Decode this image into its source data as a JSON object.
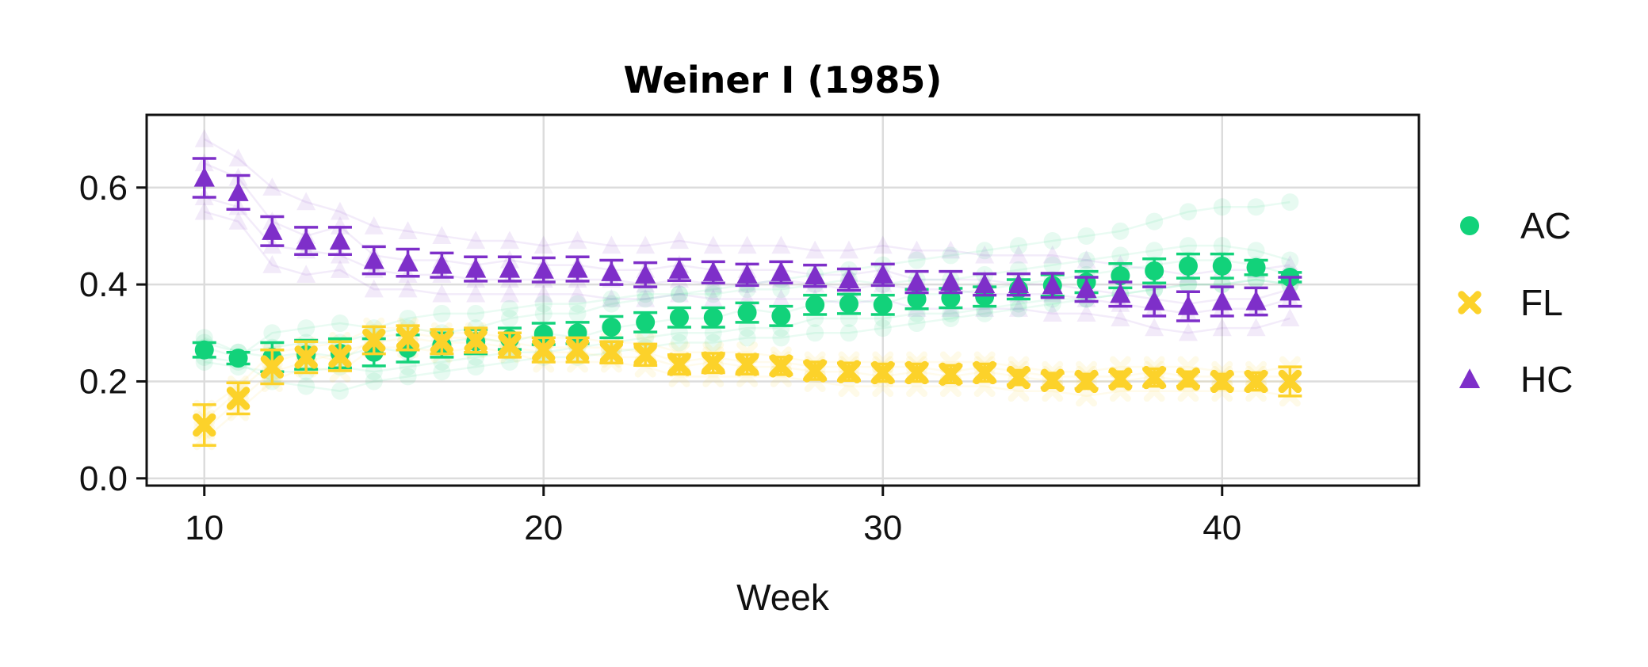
{
  "chart_data": {
    "type": "scatter",
    "title": "Weiner I (1985)",
    "xlabel": "Week",
    "ylabel": "",
    "xlim": [
      8.3,
      45.8
    ],
    "ylim": [
      -0.015,
      0.75
    ],
    "xticks": [
      10,
      20,
      30,
      40
    ],
    "yticks": [
      0.0,
      0.2,
      0.4,
      0.6
    ],
    "ytick_labels": [
      "0.0",
      "0.2",
      "0.4",
      "0.6"
    ],
    "grid": true,
    "legend_position": "right",
    "x": [
      10,
      11,
      12,
      13,
      14,
      15,
      16,
      17,
      18,
      19,
      20,
      21,
      22,
      23,
      24,
      25,
      26,
      27,
      28,
      29,
      30,
      31,
      32,
      33,
      34,
      35,
      36,
      37,
      38,
      39,
      40,
      41,
      42
    ],
    "series": [
      {
        "name": "AC",
        "color": "#12d27a",
        "marker": "circle",
        "values": [
          0.265,
          0.248,
          0.25,
          0.255,
          0.258,
          0.26,
          0.268,
          0.275,
          0.282,
          0.288,
          0.298,
          0.3,
          0.312,
          0.322,
          0.332,
          0.332,
          0.342,
          0.335,
          0.358,
          0.36,
          0.358,
          0.37,
          0.372,
          0.375,
          0.39,
          0.398,
          0.405,
          0.418,
          0.428,
          0.438,
          0.438,
          0.435,
          0.415
        ],
        "err": [
          0.015,
          0.012,
          0.03,
          0.03,
          0.03,
          0.028,
          0.028,
          0.025,
          0.025,
          0.022,
          0.022,
          0.022,
          0.022,
          0.02,
          0.02,
          0.02,
          0.02,
          0.02,
          0.02,
          0.02,
          0.02,
          0.02,
          0.02,
          0.02,
          0.02,
          0.022,
          0.022,
          0.025,
          0.025,
          0.025,
          0.025,
          0.015,
          0.01
        ]
      },
      {
        "name": "FL",
        "color": "#fcd22a",
        "marker": "x",
        "values": [
          0.11,
          0.165,
          0.23,
          0.25,
          0.252,
          0.285,
          0.29,
          0.282,
          0.285,
          0.275,
          0.265,
          0.265,
          0.26,
          0.255,
          0.235,
          0.238,
          0.235,
          0.232,
          0.222,
          0.22,
          0.218,
          0.218,
          0.215,
          0.218,
          0.208,
          0.202,
          0.2,
          0.205,
          0.208,
          0.205,
          0.2,
          0.2,
          0.2
        ],
        "err": [
          0.042,
          0.032,
          0.035,
          0.032,
          0.03,
          0.028,
          0.025,
          0.025,
          0.025,
          0.025,
          0.025,
          0.025,
          0.022,
          0.022,
          0.02,
          0.02,
          0.02,
          0.018,
          0.018,
          0.018,
          0.018,
          0.018,
          0.018,
          0.018,
          0.015,
          0.015,
          0.015,
          0.015,
          0.018,
          0.015,
          0.015,
          0.018,
          0.03
        ]
      },
      {
        "name": "HC",
        "color": "#7e2fc9",
        "marker": "triangle",
        "values": [
          0.62,
          0.59,
          0.51,
          0.49,
          0.49,
          0.45,
          0.445,
          0.44,
          0.432,
          0.432,
          0.43,
          0.432,
          0.425,
          0.42,
          0.43,
          0.425,
          0.42,
          0.425,
          0.418,
          0.41,
          0.42,
          0.405,
          0.405,
          0.4,
          0.4,
          0.398,
          0.39,
          0.38,
          0.365,
          0.355,
          0.365,
          0.365,
          0.385
        ],
        "err": [
          0.04,
          0.035,
          0.03,
          0.028,
          0.028,
          0.028,
          0.028,
          0.025,
          0.025,
          0.025,
          0.025,
          0.025,
          0.025,
          0.025,
          0.022,
          0.022,
          0.022,
          0.022,
          0.022,
          0.022,
          0.022,
          0.022,
          0.022,
          0.022,
          0.022,
          0.025,
          0.025,
          0.025,
          0.03,
          0.03,
          0.03,
          0.028,
          0.03
        ]
      }
    ],
    "background_traces": {
      "opacity": 0.1,
      "AC": [
        [
          0.29,
          0.26,
          0.27,
          0.28,
          0.28,
          0.3,
          0.31,
          0.3,
          0.31,
          0.33,
          0.34,
          0.34,
          0.36,
          0.37,
          0.38,
          0.39,
          0.4,
          0.41,
          0.42,
          0.43,
          0.44,
          0.45,
          0.46,
          0.47,
          0.48,
          0.49,
          0.5,
          0.51,
          0.53,
          0.55,
          0.56,
          0.56,
          0.57
        ],
        [
          0.24,
          0.23,
          0.22,
          0.22,
          0.23,
          0.22,
          0.23,
          0.24,
          0.25,
          0.26,
          0.26,
          0.27,
          0.28,
          0.29,
          0.3,
          0.3,
          0.31,
          0.31,
          0.33,
          0.33,
          0.33,
          0.34,
          0.34,
          0.35,
          0.36,
          0.37,
          0.37,
          0.38,
          0.39,
          0.4,
          0.4,
          0.41,
          0.4
        ],
        [
          0.27,
          0.25,
          0.3,
          0.31,
          0.32,
          0.31,
          0.33,
          0.34,
          0.34,
          0.35,
          0.36,
          0.36,
          0.37,
          0.38,
          0.38,
          0.38,
          0.39,
          0.39,
          0.4,
          0.41,
          0.4,
          0.41,
          0.41,
          0.42,
          0.43,
          0.44,
          0.45,
          0.46,
          0.47,
          0.48,
          0.48,
          0.47,
          0.45
        ],
        [
          0.25,
          0.24,
          0.2,
          0.19,
          0.18,
          0.2,
          0.21,
          0.22,
          0.23,
          0.24,
          0.25,
          0.25,
          0.26,
          0.27,
          0.28,
          0.28,
          0.29,
          0.29,
          0.3,
          0.3,
          0.31,
          0.32,
          0.33,
          0.34,
          0.35,
          0.36,
          0.37,
          0.38,
          0.39,
          0.4,
          0.4,
          0.41,
          0.4
        ],
        [
          0.28,
          0.26,
          0.25,
          0.26,
          0.25,
          0.27,
          0.26,
          0.28,
          0.29,
          0.28,
          0.3,
          0.29,
          0.31,
          0.32,
          0.33,
          0.33,
          0.35,
          0.34,
          0.36,
          0.37,
          0.36,
          0.38,
          0.38,
          0.39,
          0.4,
          0.41,
          0.42,
          0.43,
          0.44,
          0.45,
          0.45,
          0.44,
          0.42
        ]
      ],
      "FL": [
        [
          0.08,
          0.14,
          0.2,
          0.23,
          0.22,
          0.27,
          0.27,
          0.26,
          0.27,
          0.26,
          0.24,
          0.24,
          0.24,
          0.23,
          0.21,
          0.21,
          0.21,
          0.21,
          0.2,
          0.19,
          0.19,
          0.19,
          0.19,
          0.19,
          0.18,
          0.18,
          0.17,
          0.18,
          0.18,
          0.18,
          0.18,
          0.18,
          0.17
        ],
        [
          0.14,
          0.19,
          0.26,
          0.27,
          0.28,
          0.31,
          0.31,
          0.3,
          0.3,
          0.29,
          0.29,
          0.29,
          0.28,
          0.28,
          0.26,
          0.26,
          0.26,
          0.25,
          0.24,
          0.24,
          0.24,
          0.24,
          0.24,
          0.24,
          0.23,
          0.22,
          0.22,
          0.23,
          0.23,
          0.23,
          0.22,
          0.22,
          0.23
        ],
        [
          0.1,
          0.16,
          0.22,
          0.24,
          0.26,
          0.28,
          0.29,
          0.28,
          0.28,
          0.27,
          0.26,
          0.26,
          0.25,
          0.25,
          0.23,
          0.24,
          0.23,
          0.23,
          0.22,
          0.22,
          0.21,
          0.22,
          0.21,
          0.22,
          0.21,
          0.2,
          0.2,
          0.2,
          0.21,
          0.2,
          0.2,
          0.2,
          0.2
        ],
        [
          0.12,
          0.18,
          0.24,
          0.26,
          0.24,
          0.29,
          0.3,
          0.29,
          0.29,
          0.28,
          0.27,
          0.27,
          0.27,
          0.26,
          0.24,
          0.25,
          0.24,
          0.24,
          0.23,
          0.23,
          0.23,
          0.23,
          0.22,
          0.23,
          0.22,
          0.21,
          0.21,
          0.21,
          0.22,
          0.21,
          0.21,
          0.21,
          0.21
        ]
      ],
      "HC": [
        [
          0.7,
          0.66,
          0.6,
          0.57,
          0.55,
          0.52,
          0.51,
          0.5,
          0.49,
          0.49,
          0.48,
          0.49,
          0.48,
          0.48,
          0.49,
          0.48,
          0.48,
          0.48,
          0.47,
          0.47,
          0.48,
          0.47,
          0.47,
          0.46,
          0.46,
          0.46,
          0.45,
          0.44,
          0.43,
          0.42,
          0.43,
          0.43,
          0.44
        ],
        [
          0.55,
          0.53,
          0.44,
          0.42,
          0.43,
          0.39,
          0.39,
          0.38,
          0.38,
          0.38,
          0.38,
          0.38,
          0.37,
          0.37,
          0.38,
          0.37,
          0.37,
          0.37,
          0.37,
          0.36,
          0.37,
          0.35,
          0.35,
          0.35,
          0.35,
          0.34,
          0.34,
          0.33,
          0.31,
          0.3,
          0.31,
          0.31,
          0.33
        ],
        [
          0.65,
          0.62,
          0.53,
          0.5,
          0.52,
          0.46,
          0.45,
          0.45,
          0.44,
          0.45,
          0.44,
          0.44,
          0.43,
          0.43,
          0.44,
          0.43,
          0.43,
          0.43,
          0.42,
          0.42,
          0.43,
          0.41,
          0.41,
          0.41,
          0.4,
          0.4,
          0.39,
          0.38,
          0.37,
          0.36,
          0.37,
          0.37,
          0.39
        ],
        [
          0.58,
          0.56,
          0.48,
          0.47,
          0.46,
          0.43,
          0.42,
          0.42,
          0.41,
          0.41,
          0.41,
          0.41,
          0.41,
          0.4,
          0.41,
          0.4,
          0.4,
          0.41,
          0.4,
          0.39,
          0.4,
          0.39,
          0.39,
          0.38,
          0.38,
          0.38,
          0.37,
          0.36,
          0.35,
          0.34,
          0.35,
          0.35,
          0.37
        ]
      ]
    }
  }
}
